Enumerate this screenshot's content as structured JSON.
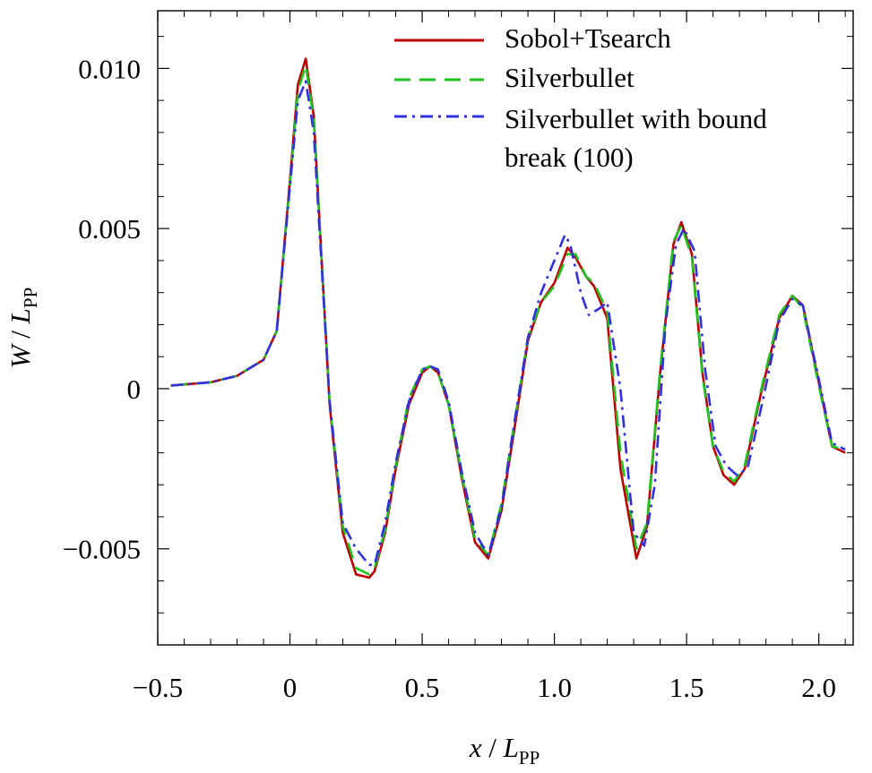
{
  "chart_data": {
    "type": "line",
    "title": "",
    "xlabel": {
      "var": "x",
      "sep": " / ",
      "sym": "L",
      "sub": "PP"
    },
    "ylabel": {
      "var": "W",
      "sep": " / ",
      "sym": "L",
      "sub": "PP"
    },
    "xlim": [
      -0.5,
      2.13
    ],
    "ylim": [
      -0.008,
      0.0118
    ],
    "x_ticks": [
      -0.5,
      0,
      0.5,
      1.0,
      1.5,
      2.0
    ],
    "x_tick_labels": [
      "−0.5",
      "0",
      "0.5",
      "1.0",
      "1.5",
      "2.0"
    ],
    "y_ticks": [
      -0.005,
      0,
      0.005,
      0.01
    ],
    "y_tick_labels": [
      "−0.005",
      "0",
      "0.005",
      "0.010"
    ],
    "grid": false,
    "legend_position": "top-right",
    "series": [
      {
        "name": "Sobol+Tsearch",
        "color": "#c00000",
        "dash": "solid",
        "x": [
          -0.45,
          -0.3,
          -0.2,
          -0.1,
          -0.05,
          0,
          0.03,
          0.06,
          0.09,
          0.15,
          0.2,
          0.25,
          0.3,
          0.32,
          0.36,
          0.4,
          0.45,
          0.5,
          0.53,
          0.56,
          0.6,
          0.65,
          0.7,
          0.75,
          0.8,
          0.85,
          0.9,
          0.95,
          1.0,
          1.05,
          1.08,
          1.12,
          1.15,
          1.2,
          1.25,
          1.31,
          1.35,
          1.4,
          1.45,
          1.48,
          1.52,
          1.56,
          1.6,
          1.64,
          1.68,
          1.72,
          1.78,
          1.85,
          1.9,
          1.94,
          2.0,
          2.05,
          2.1
        ],
        "y": [
          0.0001,
          0.0002,
          0.0004,
          0.0009,
          0.0018,
          0.0065,
          0.0095,
          0.0103,
          0.0085,
          -0.0005,
          -0.0045,
          -0.0058,
          -0.0059,
          -0.0057,
          -0.0045,
          -0.0025,
          -0.0005,
          0.0005,
          0.0007,
          0.0005,
          -0.0005,
          -0.0028,
          -0.0048,
          -0.0053,
          -0.0038,
          -0.0012,
          0.0015,
          0.0027,
          0.0033,
          0.0044,
          0.0041,
          0.0035,
          0.0032,
          0.0022,
          -0.0025,
          -0.0053,
          -0.0043,
          0.0005,
          0.0045,
          0.0052,
          0.0042,
          0.0005,
          -0.0018,
          -0.0027,
          -0.003,
          -0.0025,
          -0.0002,
          0.0022,
          0.0029,
          0.0026,
          0.0002,
          -0.0018,
          -0.002
        ]
      },
      {
        "name": "Silverbullet",
        "color": "#1ec31e",
        "dash": "long-dash",
        "x": [
          -0.45,
          -0.3,
          -0.2,
          -0.1,
          -0.05,
          0,
          0.03,
          0.06,
          0.09,
          0.15,
          0.2,
          0.25,
          0.3,
          0.32,
          0.36,
          0.4,
          0.45,
          0.5,
          0.53,
          0.56,
          0.6,
          0.65,
          0.7,
          0.75,
          0.8,
          0.85,
          0.9,
          0.95,
          1.0,
          1.05,
          1.08,
          1.12,
          1.15,
          1.2,
          1.25,
          1.31,
          1.35,
          1.4,
          1.45,
          1.48,
          1.52,
          1.56,
          1.6,
          1.64,
          1.68,
          1.72,
          1.78,
          1.85,
          1.9,
          1.94,
          2.0,
          2.05,
          2.1
        ],
        "y": [
          0.0001,
          0.0002,
          0.0004,
          0.0009,
          0.0018,
          0.0064,
          0.0093,
          0.0101,
          0.0084,
          -0.0004,
          -0.0043,
          -0.0056,
          -0.0058,
          -0.0056,
          -0.0044,
          -0.0024,
          -0.0003,
          0.0006,
          0.0007,
          0.0005,
          -0.0005,
          -0.0027,
          -0.0047,
          -0.0052,
          -0.0036,
          -0.001,
          0.0016,
          0.0027,
          0.0032,
          0.0042,
          0.0042,
          0.0035,
          0.0033,
          0.0024,
          -0.002,
          -0.005,
          -0.0042,
          0.0006,
          0.0046,
          0.0051,
          0.0041,
          0.0004,
          -0.0018,
          -0.0026,
          -0.0029,
          -0.0024,
          -0.0001,
          0.0023,
          0.0029,
          0.0025,
          0.0001,
          -0.0018,
          -0.0019
        ]
      },
      {
        "name": "Silverbullet with bound break (100)",
        "color": "#3030e0",
        "dash": "dash-dot",
        "x": [
          -0.45,
          -0.3,
          -0.2,
          -0.1,
          -0.05,
          0,
          0.03,
          0.06,
          0.09,
          0.15,
          0.2,
          0.25,
          0.3,
          0.32,
          0.36,
          0.4,
          0.45,
          0.5,
          0.53,
          0.56,
          0.6,
          0.65,
          0.7,
          0.75,
          0.8,
          0.85,
          0.9,
          0.95,
          1.0,
          1.04,
          1.06,
          1.1,
          1.13,
          1.17,
          1.2,
          1.25,
          1.3,
          1.34,
          1.38,
          1.42,
          1.46,
          1.49,
          1.53,
          1.57,
          1.61,
          1.65,
          1.69,
          1.73,
          1.79,
          1.85,
          1.9,
          1.94,
          2.0,
          2.05,
          2.1
        ],
        "y": [
          0.0001,
          0.0002,
          0.0004,
          0.0009,
          0.0018,
          0.0063,
          0.009,
          0.0096,
          0.008,
          -0.0004,
          -0.0042,
          -0.005,
          -0.0055,
          -0.0055,
          -0.0042,
          -0.0023,
          -0.0004,
          0.0006,
          0.0007,
          0.0006,
          -0.0004,
          -0.0026,
          -0.0045,
          -0.0052,
          -0.0037,
          -0.001,
          0.0016,
          0.003,
          0.004,
          0.0048,
          0.0045,
          0.003,
          0.0023,
          0.0025,
          0.0027,
          0.0,
          -0.0045,
          -0.0049,
          -0.003,
          0.002,
          0.0045,
          0.005,
          0.0043,
          0.0006,
          -0.0018,
          -0.0024,
          -0.0027,
          -0.0025,
          -0.0003,
          0.0021,
          0.0028,
          0.0026,
          0.0003,
          -0.0017,
          -0.0019
        ]
      }
    ]
  }
}
